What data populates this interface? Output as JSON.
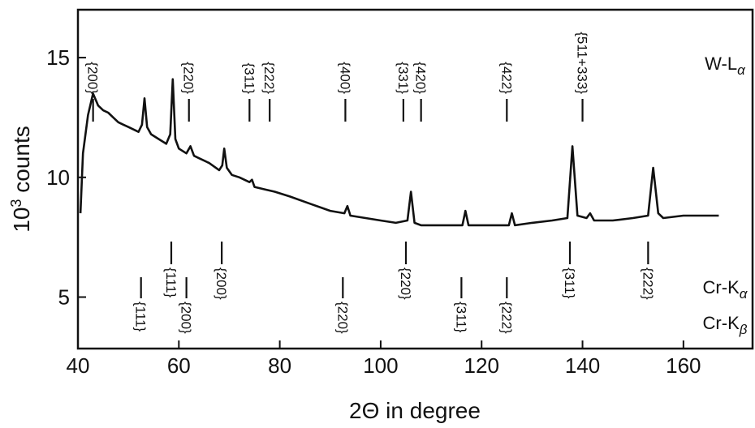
{
  "chart_data": {
    "type": "line",
    "xlabel": "2Θ in degree",
    "ylabel": {
      "base": "10",
      "sup": "3",
      "text": " counts"
    },
    "xlim": [
      40,
      173.7
    ],
    "ylim": [
      2.85,
      17.0
    ],
    "xticks": [
      40,
      60,
      80,
      100,
      120,
      140,
      160
    ],
    "yticks": [
      5,
      10,
      15
    ],
    "x": [
      40.5,
      41,
      42,
      43,
      44,
      45,
      46,
      47,
      48,
      49,
      50,
      51,
      52,
      52.7,
      53.2,
      53.7,
      54.5,
      56,
      57.5,
      58.3,
      58.8,
      59.3,
      60,
      61.5,
      62.3,
      63,
      64,
      66,
      68,
      68.6,
      69,
      69.5,
      70.5,
      72,
      74,
      74.5,
      75,
      77,
      79,
      82,
      86,
      90,
      92.8,
      93.4,
      94,
      97,
      100,
      103,
      105.3,
      106,
      106.7,
      108,
      112,
      116.2,
      116.8,
      117.4,
      120,
      125.4,
      126,
      126.6,
      130,
      134,
      137,
      138,
      139,
      140.8,
      141.5,
      142.3,
      146,
      150,
      153,
      154,
      155,
      156,
      160,
      164,
      167
    ],
    "series": [
      {
        "color": "#111111",
        "values": [
          8.5,
          11,
          12.6,
          13.5,
          13.0,
          12.8,
          12.7,
          12.5,
          12.3,
          12.2,
          12.1,
          12.0,
          11.9,
          12.2,
          13.3,
          12.1,
          11.8,
          11.6,
          11.4,
          11.8,
          14.1,
          11.6,
          11.2,
          11.0,
          11.3,
          10.9,
          10.8,
          10.6,
          10.3,
          10.5,
          11.2,
          10.4,
          10.1,
          10.0,
          9.8,
          9.9,
          9.6,
          9.5,
          9.4,
          9.2,
          8.9,
          8.6,
          8.5,
          8.8,
          8.4,
          8.3,
          8.2,
          8.1,
          8.2,
          9.4,
          8.1,
          8.0,
          8.0,
          8.0,
          8.6,
          8.0,
          8.0,
          8.0,
          8.5,
          8.0,
          8.1,
          8.2,
          8.3,
          11.3,
          8.4,
          8.3,
          8.5,
          8.2,
          8.2,
          8.3,
          8.4,
          10.4,
          8.5,
          8.3,
          8.4,
          8.4,
          8.4
        ]
      }
    ],
    "reflection_groups": [
      {
        "label": {
          "main": "W-L",
          "sub": "α"
        },
        "position": "top",
        "markers": [
          {
            "x": 43,
            "label": "{200}"
          },
          {
            "x": 62,
            "label": "{220}"
          },
          {
            "x": 74,
            "label": "{311}"
          },
          {
            "x": 78,
            "label": "{222}"
          },
          {
            "x": 93,
            "label": "{400}"
          },
          {
            "x": 104.5,
            "label": "{331}"
          },
          {
            "x": 108,
            "label": "{420}"
          },
          {
            "x": 125,
            "label": "{422}"
          },
          {
            "x": 140,
            "label": "{511+333}"
          }
        ]
      },
      {
        "label": {
          "main": "Cr-K",
          "sub": "α"
        },
        "position": "upper-bottom",
        "markers": [
          {
            "x": 58.5,
            "label": "{111}"
          },
          {
            "x": 68.5,
            "label": "{200}"
          },
          {
            "x": 105,
            "label": "{220}"
          },
          {
            "x": 137.5,
            "label": "{311}"
          },
          {
            "x": 153,
            "label": "{222}"
          }
        ]
      },
      {
        "label": {
          "main": "Cr-K",
          "sub": "β"
        },
        "position": "lower-bottom",
        "markers": [
          {
            "x": 52.5,
            "label": "{111}"
          },
          {
            "x": 61.5,
            "label": "{200}"
          },
          {
            "x": 92.5,
            "label": "{220}"
          },
          {
            "x": 116,
            "label": "{311}"
          },
          {
            "x": 125,
            "label": "{222}"
          }
        ]
      }
    ]
  }
}
